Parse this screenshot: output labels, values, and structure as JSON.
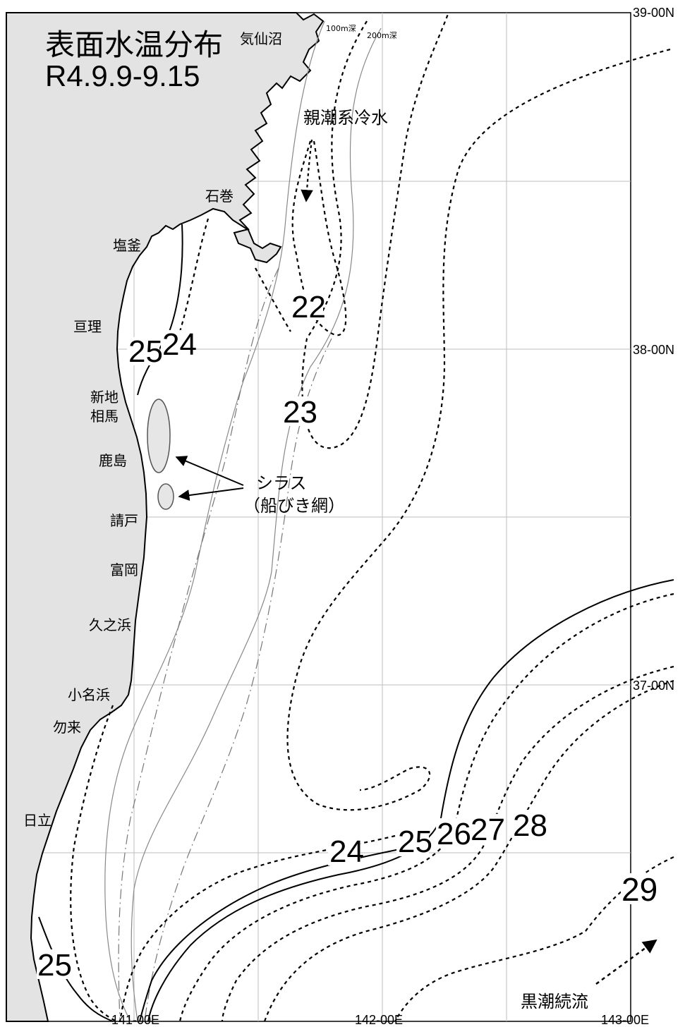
{
  "title": {
    "line1": "表面水温分布",
    "line2": "R4.9.9-9.15"
  },
  "latitude_labels": [
    "39-00N",
    "38-00N",
    "37-00N"
  ],
  "longitude_labels": [
    "141-00E",
    "142-00E",
    "143-00E"
  ],
  "places": {
    "kesennuma": "気仙沼",
    "ishinomaki": "石巻",
    "shiogama": "塩釜",
    "watari": "亘理",
    "shinchi": "新地",
    "soma": "相馬",
    "kashima": "鹿島",
    "ukedo": "請戸",
    "tomioka": "富岡",
    "hisanohama": "久之浜",
    "onahama": "小名浜",
    "nakoso": "勿来",
    "hitachi": "日立"
  },
  "depth_labels": {
    "d100": "100m深",
    "d200": "200m深"
  },
  "isotherms": {
    "t22": "22",
    "t23": "23",
    "t24_north": "24",
    "t25_north": "25",
    "t24_south": "24",
    "t25_south": "25",
    "t26": "26",
    "t27": "27",
    "t28": "28",
    "t29": "29",
    "t25_coast": "25"
  },
  "annotations": {
    "oyashio": "親潮系冷水",
    "shirasu_line1": "シラス",
    "shirasu_line2": "（船びき網）",
    "kuroshio": "黒潮続流"
  },
  "colors": {
    "land": "#e3e3e3",
    "shirasu_area": "#e6e6e6",
    "grid": "#bdbdbd"
  }
}
